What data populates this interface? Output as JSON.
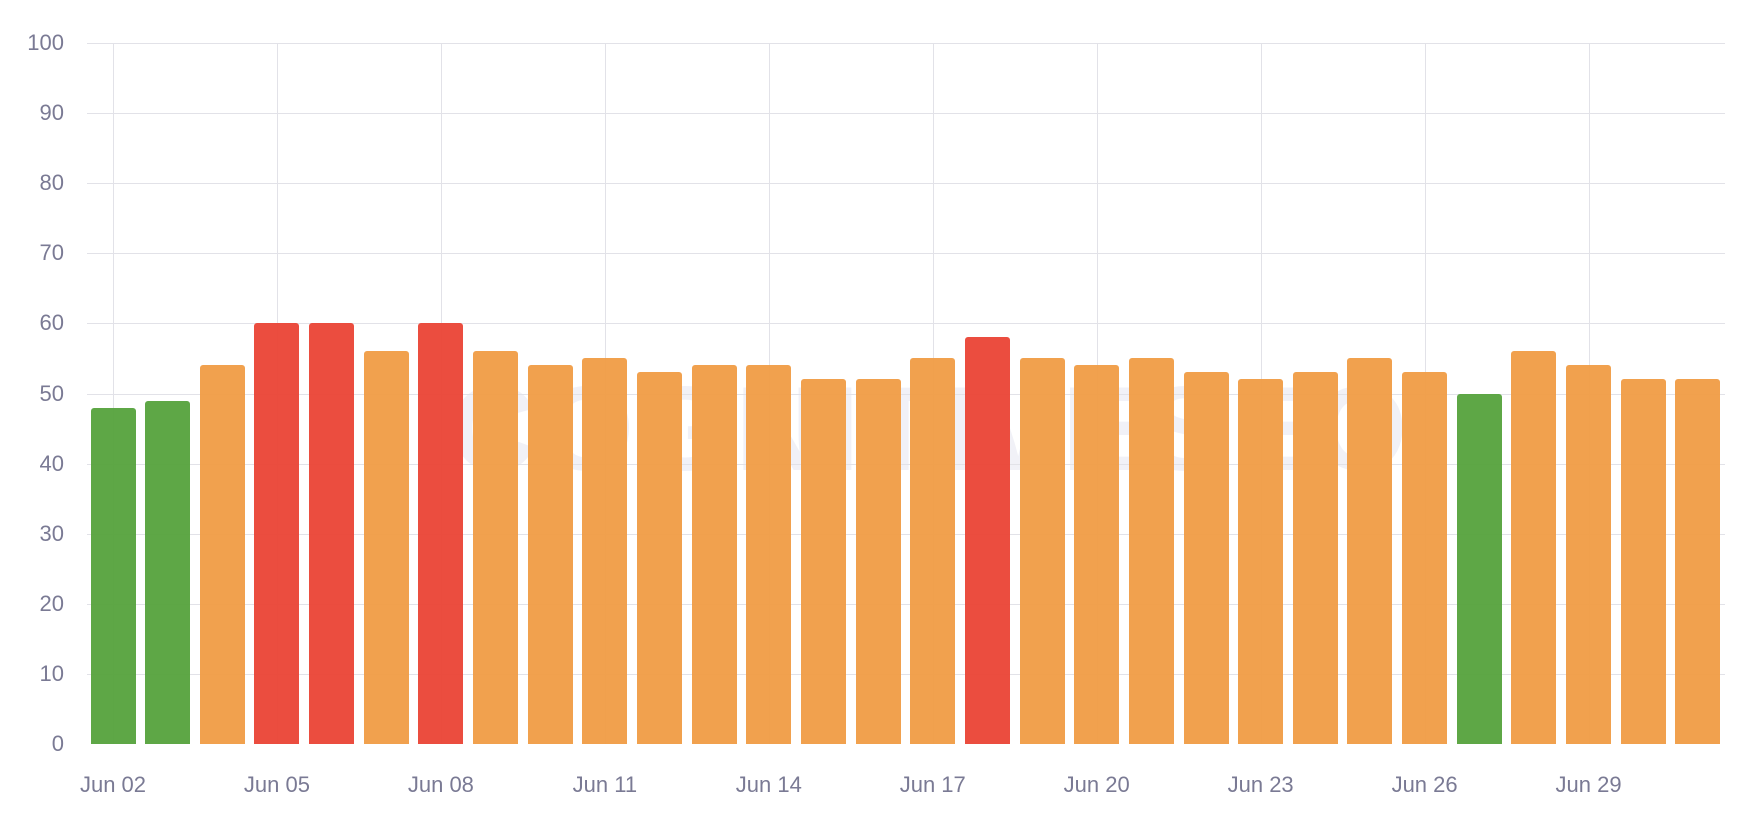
{
  "watermark": "COGNITIVESEO",
  "colors": {
    "good": "#55a23c",
    "warn": "#f09c44",
    "bad": "#ea4335",
    "grid": "#e2e2e8",
    "label": "#7a7a94"
  },
  "chart_data": {
    "type": "bar",
    "title": "",
    "xlabel": "",
    "ylabel": "",
    "ylim": [
      0,
      100
    ],
    "yticks": [
      0,
      10,
      20,
      30,
      40,
      50,
      60,
      70,
      80,
      90,
      100
    ],
    "xtick_labels": [
      "Jun 02",
      "Jun 05",
      "Jun 08",
      "Jun 11",
      "Jun 14",
      "Jun 17",
      "Jun 20",
      "Jun 23",
      "Jun 26",
      "Jun 29"
    ],
    "grid": true,
    "legend": null,
    "categories": [
      "Jun 02",
      "Jun 03",
      "Jun 04",
      "Jun 05",
      "Jun 06",
      "Jun 07",
      "Jun 08",
      "Jun 09",
      "Jun 10",
      "Jun 11",
      "Jun 12",
      "Jun 13",
      "Jun 14",
      "Jun 15",
      "Jun 16",
      "Jun 17",
      "Jun 18",
      "Jun 19",
      "Jun 20",
      "Jun 21",
      "Jun 22",
      "Jun 23",
      "Jun 24",
      "Jun 25",
      "Jun 26",
      "Jun 27",
      "Jun 28",
      "Jun 29",
      "Jun 30",
      "Jul 01"
    ],
    "values": [
      48,
      49,
      54,
      60,
      60,
      56,
      60,
      56,
      54,
      55,
      53,
      54,
      54,
      52,
      52,
      55,
      58,
      55,
      54,
      55,
      53,
      52,
      53,
      55,
      53,
      50,
      56,
      54,
      52,
      52
    ],
    "bar_status": [
      "good",
      "good",
      "warn",
      "bad",
      "bad",
      "warn",
      "bad",
      "warn",
      "warn",
      "warn",
      "warn",
      "warn",
      "warn",
      "warn",
      "warn",
      "warn",
      "bad",
      "warn",
      "warn",
      "warn",
      "warn",
      "warn",
      "warn",
      "warn",
      "warn",
      "good",
      "warn",
      "warn",
      "warn",
      "warn"
    ]
  }
}
